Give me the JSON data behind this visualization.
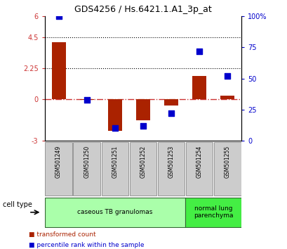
{
  "title": "GDS4256 / Hs.6421.1.A1_3p_at",
  "samples": [
    "GSM501249",
    "GSM501250",
    "GSM501251",
    "GSM501252",
    "GSM501253",
    "GSM501254",
    "GSM501255"
  ],
  "transformed_counts": [
    4.1,
    -0.05,
    -2.3,
    -1.5,
    -0.45,
    1.7,
    0.28
  ],
  "percentile_ranks": [
    100,
    33,
    10,
    12,
    22,
    72,
    52
  ],
  "left_ylim": [
    -3,
    6
  ],
  "right_ylim": [
    0,
    100
  ],
  "left_yticks": [
    -3,
    0,
    2.25,
    4.5,
    6
  ],
  "left_yticklabels": [
    "-3",
    "0",
    "2.25",
    "4.5",
    "6"
  ],
  "right_yticks": [
    0,
    25,
    50,
    75,
    100
  ],
  "right_yticklabels": [
    "0",
    "25",
    "50",
    "75",
    "100%"
  ],
  "hlines": [
    2.25,
    4.5
  ],
  "bar_color": "#aa2200",
  "dot_color": "#0000cc",
  "zero_line_color": "#cc3333",
  "cell_type_groups": [
    {
      "label": "caseous TB granulomas",
      "indices": [
        0,
        1,
        2,
        3,
        4
      ],
      "color": "#aaffaa"
    },
    {
      "label": "normal lung\nparenchyma",
      "indices": [
        5,
        6
      ],
      "color": "#44ee44"
    }
  ],
  "cell_type_label": "cell type",
  "legend_entries": [
    {
      "color": "#aa2200",
      "label": "transformed count"
    },
    {
      "color": "#0000cc",
      "label": "percentile rank within the sample"
    }
  ],
  "bar_width": 0.5,
  "dot_marker_size": 30
}
